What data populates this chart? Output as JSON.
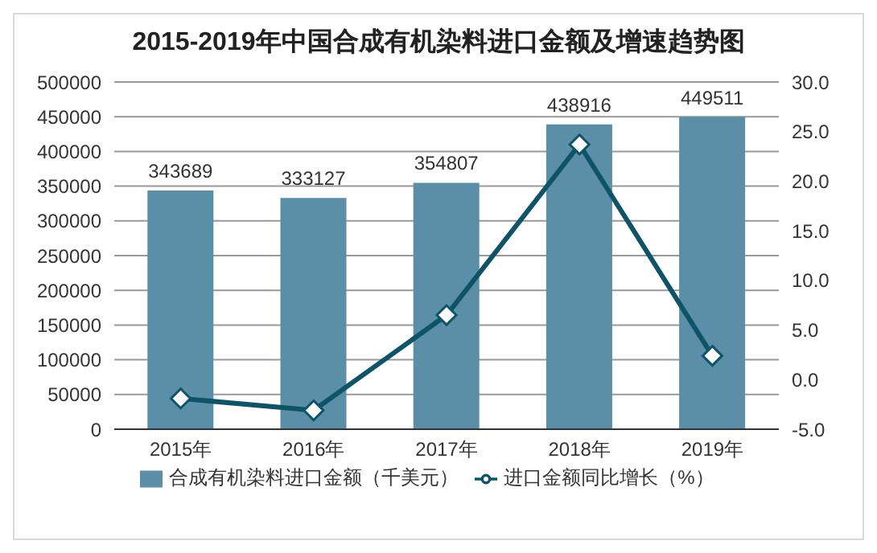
{
  "chart_data": {
    "type": "bar",
    "title": "2015-2019年中国合成有机染料进口金额及增速趋势图",
    "categories": [
      "2015年",
      "2016年",
      "2017年",
      "2018年",
      "2019年"
    ],
    "series": [
      {
        "name": "合成有机染料进口金额（千美元）",
        "color": "#5b8fa8",
        "values": [
          343689,
          333127,
          354807,
          438916,
          449511
        ],
        "value_labels": [
          "343689",
          "333127",
          "354807",
          "438916",
          "449511"
        ]
      },
      {
        "name": "进口金额同比增长（%）",
        "type": "line",
        "axis": "y2",
        "color": "#0d5469",
        "values": [
          -1.9,
          -3.1,
          6.5,
          23.7,
          2.4
        ],
        "marker": "diamond"
      }
    ],
    "ylim": [
      0,
      500000
    ],
    "yticks": [
      0,
      50000,
      100000,
      150000,
      200000,
      250000,
      300000,
      350000,
      400000,
      450000,
      500000
    ],
    "y2lim": [
      -5,
      30
    ],
    "y2ticks": [
      {
        "value": -5,
        "label": "-5.0"
      },
      {
        "value": 0,
        "label": "0.0"
      },
      {
        "value": 5,
        "label": "5.0"
      },
      {
        "value": 10,
        "label": "10.0"
      },
      {
        "value": 15,
        "label": "15.0"
      },
      {
        "value": 20,
        "label": "20.0"
      },
      {
        "value": 25,
        "label": "25.0"
      },
      {
        "value": 30,
        "label": "30.0"
      }
    ],
    "grid": "y",
    "legend": "bottom"
  }
}
